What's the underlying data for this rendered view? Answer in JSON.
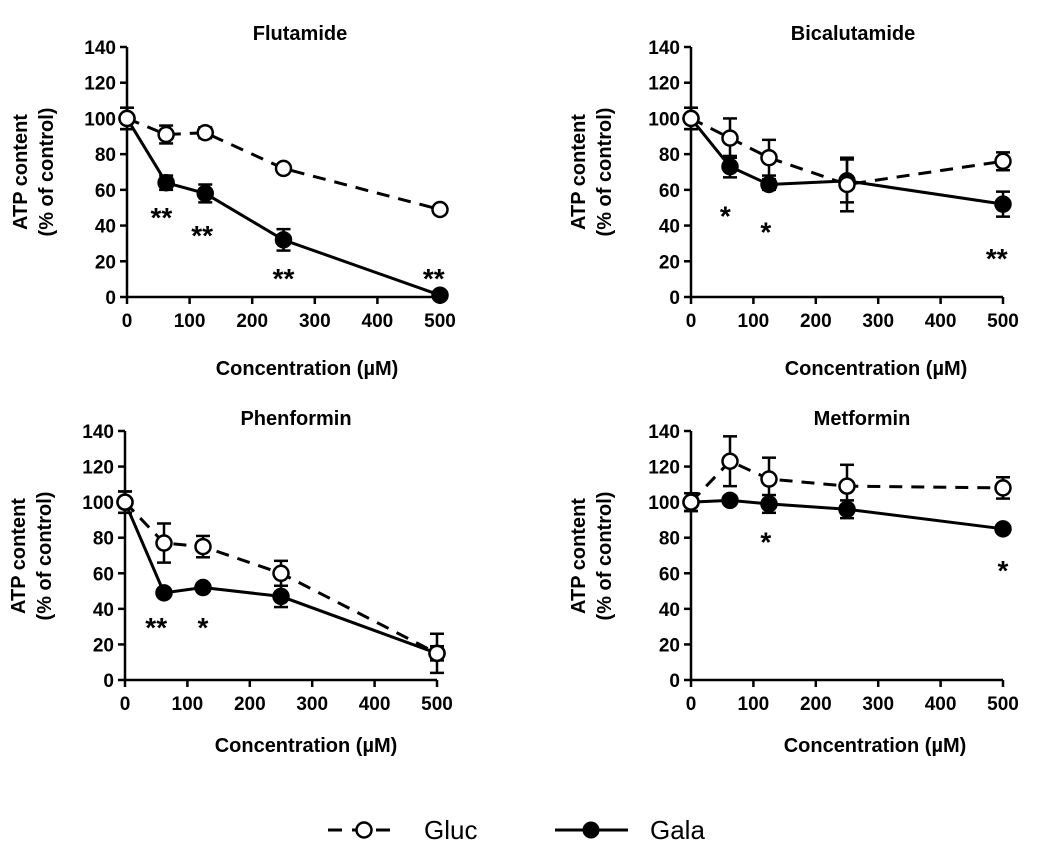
{
  "chart_data": [
    {
      "type": "line",
      "title": "Flutamide",
      "xlabel": "Concentration (µM)",
      "ylabel": [
        "ATP content",
        "(% of control)"
      ],
      "xlim": [
        0,
        500
      ],
      "ylim": [
        0,
        140
      ],
      "xticks": [
        "0",
        "100",
        "200",
        "300",
        "400",
        "500"
      ],
      "yticks": [
        "0",
        "20",
        "40",
        "60",
        "80",
        "100",
        "120",
        "140"
      ],
      "series": [
        {
          "name": "Gluc",
          "marker": "open-circle",
          "line": "dashed",
          "x": [
            0,
            62.5,
            125,
            250,
            500
          ],
          "y": [
            100,
            91,
            92,
            72,
            49
          ],
          "err": [
            6,
            5,
            3,
            2,
            2
          ]
        },
        {
          "name": "Gala",
          "marker": "filled-circle",
          "line": "solid",
          "x": [
            0,
            62.5,
            125,
            250,
            500
          ],
          "y": [
            100,
            64,
            58,
            32,
            1
          ],
          "err": [
            6,
            4,
            5,
            6,
            1
          ]
        }
      ],
      "annotations": [
        {
          "text": "**",
          "x": 55,
          "y": 47
        },
        {
          "text": "**",
          "x": 120,
          "y": 37
        },
        {
          "text": "**",
          "x": 250,
          "y": 13
        },
        {
          "text": "**",
          "x": 490,
          "y": 13
        }
      ]
    },
    {
      "type": "line",
      "title": "Bicalutamide",
      "xlabel": "Concentration (µM)",
      "ylabel": [
        "ATP content",
        "(% of control)"
      ],
      "xlim": [
        0,
        500
      ],
      "ylim": [
        0,
        140
      ],
      "xticks": [
        "0",
        "100",
        "200",
        "300",
        "400",
        "500"
      ],
      "yticks": [
        "0",
        "20",
        "40",
        "60",
        "80",
        "100",
        "120",
        "140"
      ],
      "series": [
        {
          "name": "Gluc",
          "marker": "open-circle",
          "line": "dashed",
          "x": [
            0,
            62.5,
            125,
            250,
            500
          ],
          "y": [
            100,
            89,
            78,
            63,
            76
          ],
          "err": [
            6,
            11,
            10,
            15,
            5
          ]
        },
        {
          "name": "Gala",
          "marker": "filled-circle",
          "line": "solid",
          "x": [
            0,
            62.5,
            125,
            250,
            500
          ],
          "y": [
            100,
            73,
            63,
            65,
            52
          ],
          "err": [
            6,
            6,
            3,
            12,
            7
          ]
        }
      ],
      "annotations": [
        {
          "text": "*",
          "x": 55,
          "y": 48
        },
        {
          "text": "*",
          "x": 120,
          "y": 39
        },
        {
          "text": "**",
          "x": 490,
          "y": 24
        }
      ]
    },
    {
      "type": "line",
      "title": "Phenformin",
      "xlabel": "Concentration (µM)",
      "ylabel": [
        "ATP content",
        "(% of control)"
      ],
      "xlim": [
        0,
        500
      ],
      "ylim": [
        0,
        140
      ],
      "xticks": [
        "0",
        "100",
        "200",
        "300",
        "400",
        "500"
      ],
      "yticks": [
        "0",
        "20",
        "40",
        "60",
        "80",
        "100",
        "120",
        "140"
      ],
      "series": [
        {
          "name": "Gluc",
          "marker": "open-circle",
          "line": "dashed",
          "x": [
            0,
            62.5,
            125,
            250,
            500
          ],
          "y": [
            100,
            77,
            75,
            60,
            15
          ],
          "err": [
            6,
            11,
            6,
            7,
            11
          ]
        },
        {
          "name": "Gala",
          "marker": "filled-circle",
          "line": "solid",
          "x": [
            0,
            62.5,
            125,
            250,
            500
          ],
          "y": [
            100,
            49,
            52,
            47,
            15
          ],
          "err": [
            6,
            2,
            2,
            6,
            4
          ]
        }
      ],
      "annotations": [
        {
          "text": "**",
          "x": 50,
          "y": 32
        },
        {
          "text": "*",
          "x": 125,
          "y": 32
        }
      ]
    },
    {
      "type": "line",
      "title": "Metformin",
      "xlabel": "Concentration (µM)",
      "ylabel": [
        "ATP content",
        "(% of control)"
      ],
      "xlim": [
        0,
        500
      ],
      "ylim": [
        0,
        140
      ],
      "xticks": [
        "0",
        "100",
        "200",
        "300",
        "400",
        "500"
      ],
      "yticks": [
        "0",
        "20",
        "40",
        "60",
        "80",
        "100",
        "120",
        "140"
      ],
      "series": [
        {
          "name": "Gluc",
          "marker": "open-circle",
          "line": "dashed",
          "x": [
            0,
            62.5,
            125,
            250,
            500
          ],
          "y": [
            100,
            123,
            113,
            109,
            108
          ],
          "err": [
            5,
            14,
            12,
            12,
            6
          ]
        },
        {
          "name": "Gala",
          "marker": "filled-circle",
          "line": "solid",
          "x": [
            0,
            62.5,
            125,
            250,
            500
          ],
          "y": [
            100,
            101,
            99,
            96,
            85
          ],
          "err": [
            5,
            2,
            5,
            5,
            2
          ]
        }
      ],
      "annotations": [
        {
          "text": "*",
          "x": 120,
          "y": 80
        },
        {
          "text": "*",
          "x": 500,
          "y": 64
        }
      ]
    }
  ],
  "legend": {
    "placement": "bottom-center",
    "items": [
      {
        "label": "Gluc",
        "marker": "open-circle",
        "line": "dashed"
      },
      {
        "label": "Gala",
        "marker": "filled-circle",
        "line": "solid"
      }
    ]
  }
}
